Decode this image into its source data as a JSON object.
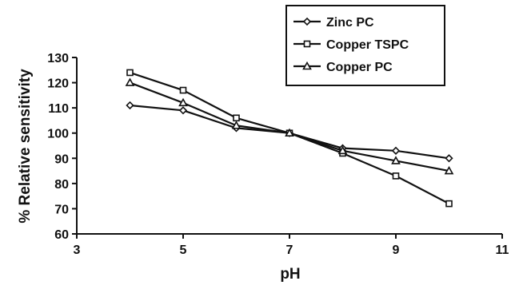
{
  "chart_data": {
    "type": "line",
    "title": "",
    "xlabel": "pH",
    "ylabel": "% Relative sensitivity",
    "xlim": [
      3,
      11
    ],
    "ylim": [
      60,
      130
    ],
    "xticks": [
      3,
      5,
      7,
      9,
      11
    ],
    "yticks": [
      60,
      70,
      80,
      90,
      100,
      110,
      120,
      130
    ],
    "grid": false,
    "legend_position": "top-right",
    "x": [
      4,
      5,
      6,
      7,
      8,
      9,
      10
    ],
    "series": [
      {
        "name": "Zinc PC",
        "marker": "diamond",
        "values": [
          111,
          109,
          102,
          100,
          94,
          93,
          90
        ]
      },
      {
        "name": "Copper TSPC",
        "marker": "square",
        "values": [
          124,
          117,
          106,
          100,
          92,
          83,
          72
        ]
      },
      {
        "name": "Copper PC",
        "marker": "triangle",
        "values": [
          120,
          112,
          103,
          100,
          93,
          89,
          85
        ]
      }
    ],
    "colors": {
      "line": "#111111",
      "marker_fill": "#ffffff"
    }
  }
}
